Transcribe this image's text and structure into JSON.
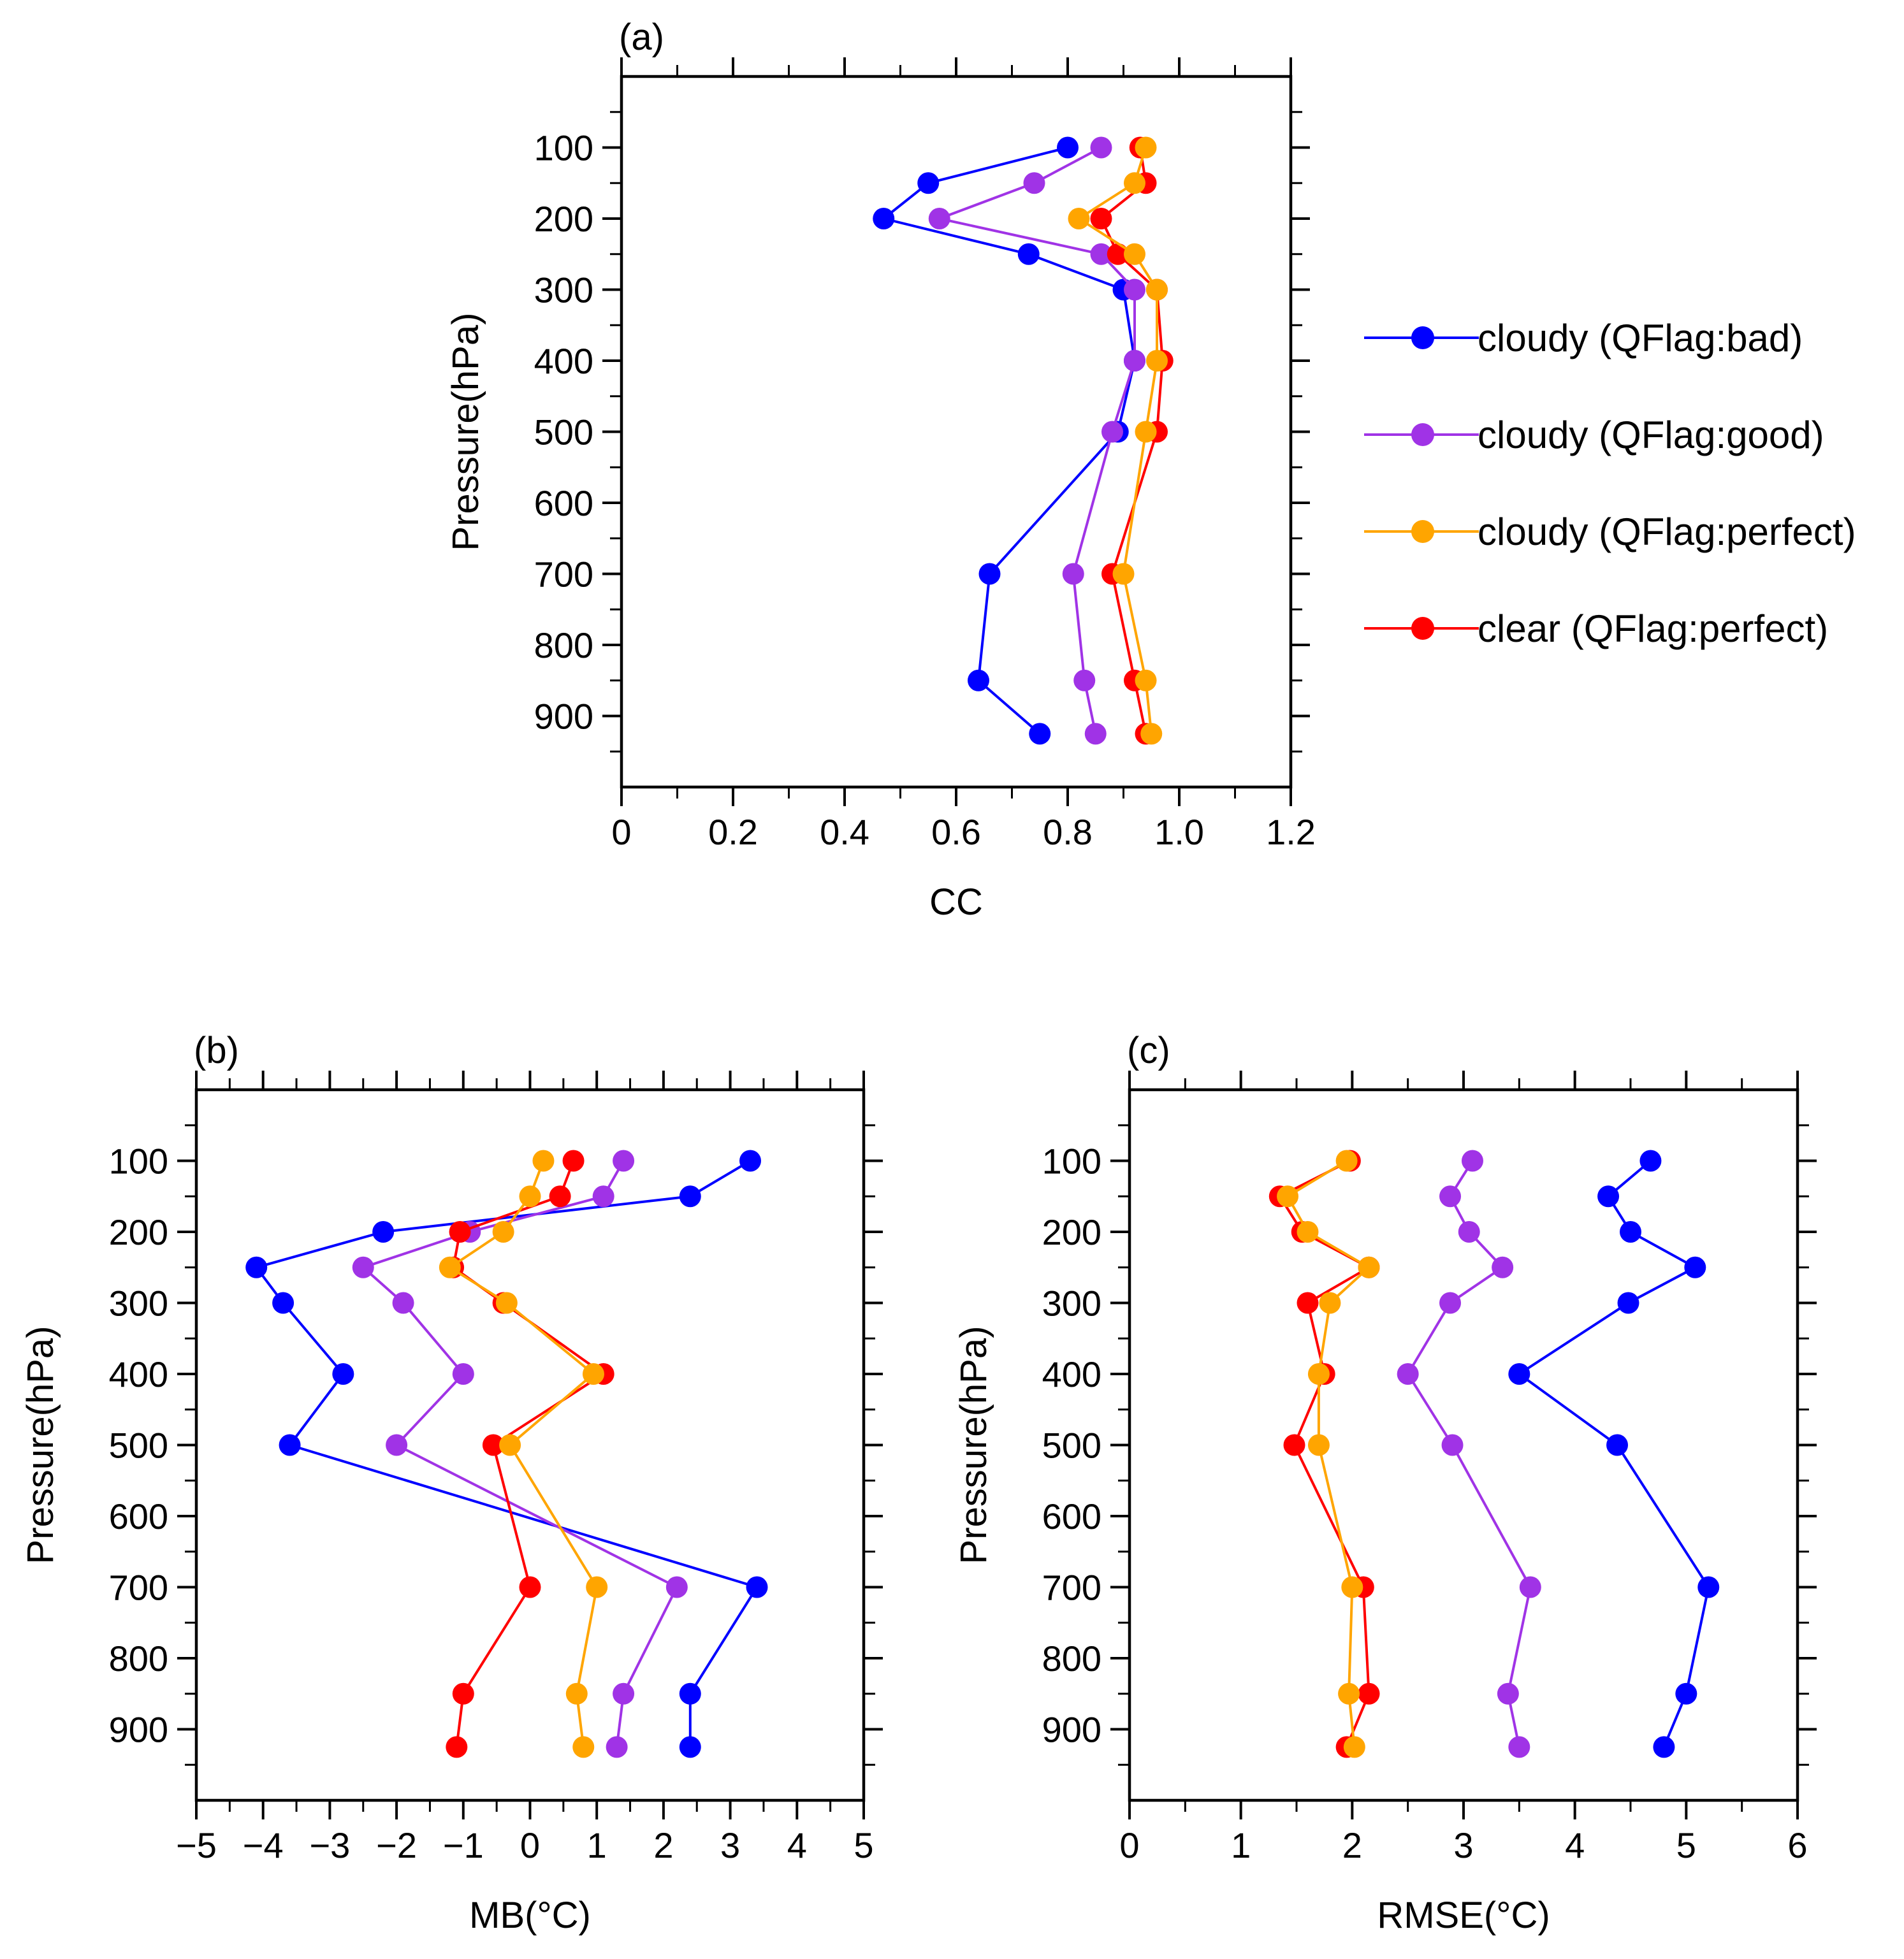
{
  "pressure_levels": [
    100,
    150,
    200,
    250,
    300,
    400,
    500,
    700,
    850,
    925
  ],
  "series_colors": {
    "cloudy_bad": "#0000ff",
    "cloudy_good": "#a033e6",
    "cloudy_perfect": "#ffa500",
    "clear_perfect": "#ff0000"
  },
  "legend": [
    {
      "key": "cloudy_bad",
      "label": "cloudy (QFlag:bad)"
    },
    {
      "key": "cloudy_good",
      "label": "cloudy (QFlag:good)"
    },
    {
      "key": "cloudy_perfect",
      "label": "cloudy (QFlag:perfect)"
    },
    {
      "key": "clear_perfect",
      "label": "clear (QFlag:perfect)"
    }
  ],
  "chart_data": [
    {
      "type": "line",
      "panel_label": "(a)",
      "xlabel": "CC",
      "ylabel": "Pressure(hPa)",
      "xlim": [
        0,
        1.2
      ],
      "ylim": [
        1000,
        0
      ],
      "xticks": [
        0,
        0.2,
        0.4,
        0.6,
        0.8,
        1.0,
        1.2
      ],
      "xtick_labels": [
        "0",
        "0.2",
        "0.4",
        "0.6",
        "0.8",
        "1.0",
        "1.2"
      ],
      "yticks": [
        100,
        200,
        300,
        400,
        500,
        600,
        700,
        800,
        900
      ],
      "ytick_labels": [
        "100",
        "200",
        "300",
        "400",
        "500",
        "600",
        "700",
        "800",
        "900"
      ],
      "series": [
        {
          "key": "cloudy_bad",
          "name": "cloudy (QFlag:bad)",
          "values": [
            0.8,
            0.55,
            0.47,
            0.73,
            0.9,
            0.92,
            0.89,
            0.66,
            0.64,
            0.75
          ]
        },
        {
          "key": "cloudy_good",
          "name": "cloudy (QFlag:good)",
          "values": [
            0.86,
            0.74,
            0.57,
            0.86,
            0.92,
            0.92,
            0.88,
            0.81,
            0.83,
            0.85
          ]
        },
        {
          "key": "clear_perfect",
          "name": "clear (QFlag:perfect)",
          "values": [
            0.93,
            0.94,
            0.86,
            0.89,
            0.96,
            0.97,
            0.96,
            0.88,
            0.92,
            0.94
          ]
        },
        {
          "key": "cloudy_perfect",
          "name": "cloudy (QFlag:perfect)",
          "values": [
            0.94,
            0.92,
            0.82,
            0.92,
            0.96,
            0.96,
            0.94,
            0.9,
            0.94,
            0.95
          ]
        }
      ]
    },
    {
      "type": "line",
      "panel_label": "(b)",
      "xlabel": "MB(°C)",
      "ylabel": "Pressure(hPa)",
      "xlim": [
        -5,
        5
      ],
      "ylim": [
        1000,
        0
      ],
      "xticks": [
        -5,
        -4,
        -3,
        -2,
        -1,
        0,
        1,
        2,
        3,
        4,
        5
      ],
      "xtick_labels": [
        "−5",
        "−4",
        "−3",
        "−2",
        "−1",
        "0",
        "1",
        "2",
        "3",
        "4",
        "5"
      ],
      "yticks": [
        100,
        200,
        300,
        400,
        500,
        600,
        700,
        800,
        900
      ],
      "ytick_labels": [
        "100",
        "200",
        "300",
        "400",
        "500",
        "600",
        "700",
        "800",
        "900"
      ],
      "series": [
        {
          "key": "cloudy_bad",
          "name": "cloudy (QFlag:bad)",
          "values": [
            3.3,
            2.4,
            -2.2,
            -4.1,
            -3.7,
            -2.8,
            -3.6,
            3.4,
            2.4,
            2.4
          ]
        },
        {
          "key": "cloudy_good",
          "name": "cloudy (QFlag:good)",
          "values": [
            1.4,
            1.1,
            -0.9,
            -2.5,
            -1.9,
            -1.0,
            -2.0,
            2.2,
            1.4,
            1.3
          ]
        },
        {
          "key": "clear_perfect",
          "name": "clear (QFlag:perfect)",
          "values": [
            0.65,
            0.45,
            -1.05,
            -1.15,
            -0.4,
            1.1,
            -0.55,
            0.0,
            -1.0,
            -1.1
          ]
        },
        {
          "key": "cloudy_perfect",
          "name": "cloudy (QFlag:perfect)",
          "values": [
            0.2,
            0.0,
            -0.4,
            -1.2,
            -0.35,
            0.95,
            -0.3,
            1.0,
            0.7,
            0.8
          ]
        }
      ]
    },
    {
      "type": "line",
      "panel_label": "(c)",
      "xlabel": "RMSE(°C)",
      "ylabel": "Pressure(hPa)",
      "xlim": [
        0,
        6
      ],
      "ylim": [
        1000,
        0
      ],
      "xticks": [
        0,
        1,
        2,
        3,
        4,
        5,
        6
      ],
      "xtick_labels": [
        "0",
        "1",
        "2",
        "3",
        "4",
        "5",
        "6"
      ],
      "yticks": [
        100,
        200,
        300,
        400,
        500,
        600,
        700,
        800,
        900
      ],
      "ytick_labels": [
        "100",
        "200",
        "300",
        "400",
        "500",
        "600",
        "700",
        "800",
        "900"
      ],
      "series": [
        {
          "key": "cloudy_bad",
          "name": "cloudy (QFlag:bad)",
          "values": [
            4.68,
            4.3,
            4.5,
            5.08,
            4.48,
            3.5,
            4.38,
            5.2,
            5.0,
            4.8
          ]
        },
        {
          "key": "cloudy_good",
          "name": "cloudy (QFlag:good)",
          "values": [
            3.08,
            2.88,
            3.05,
            3.35,
            2.88,
            2.5,
            2.9,
            3.6,
            3.4,
            3.5
          ]
        },
        {
          "key": "clear_perfect",
          "name": "clear (QFlag:perfect)",
          "values": [
            1.98,
            1.35,
            1.55,
            2.15,
            1.6,
            1.75,
            1.48,
            2.1,
            2.15,
            1.95
          ]
        },
        {
          "key": "cloudy_perfect",
          "name": "cloudy (QFlag:perfect)",
          "values": [
            1.95,
            1.42,
            1.6,
            2.15,
            1.8,
            1.7,
            1.7,
            2.0,
            1.97,
            2.02
          ]
        }
      ]
    }
  ]
}
